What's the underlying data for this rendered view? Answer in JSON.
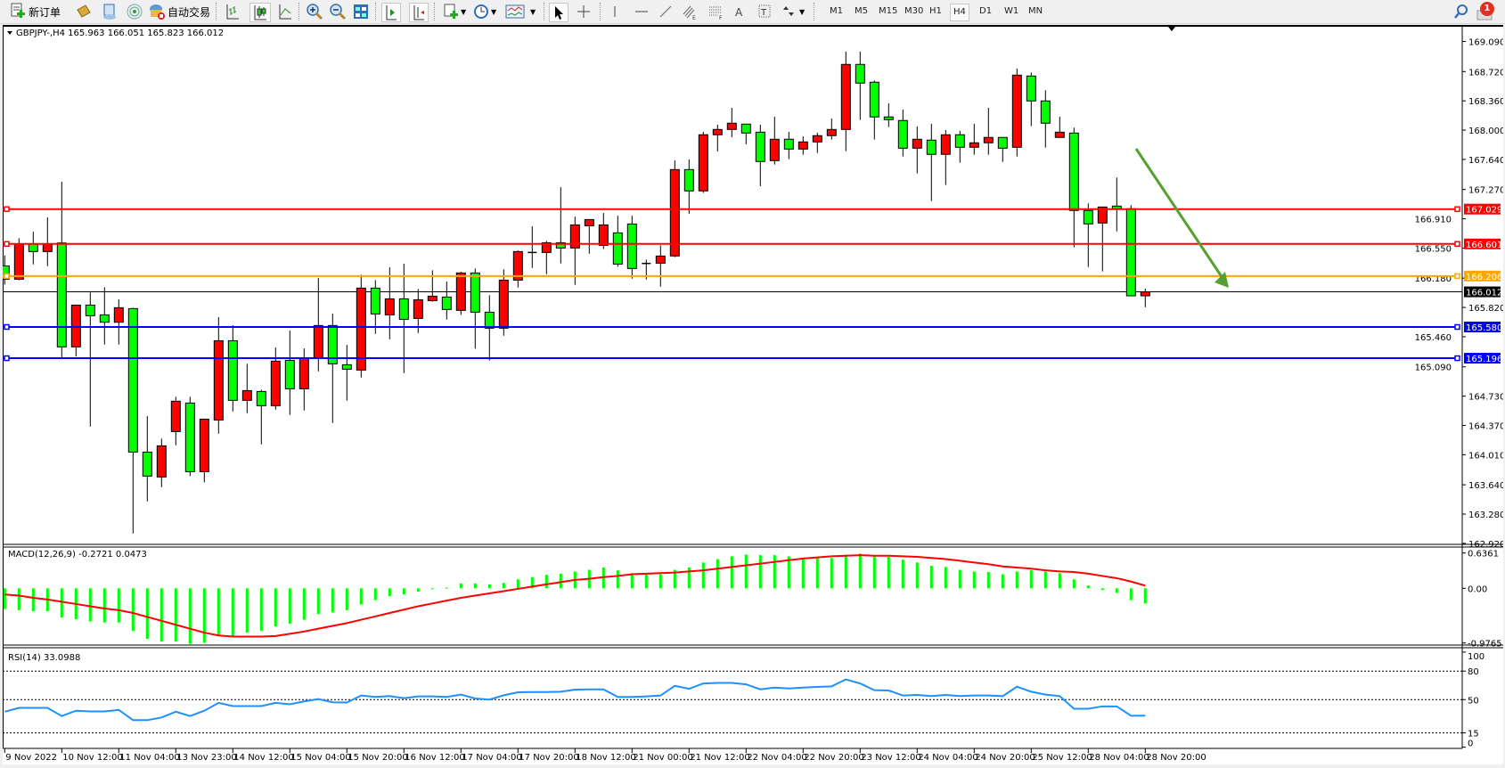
{
  "toolbar": {
    "new_order_label": "新订单",
    "autotrading_label": "自动交易",
    "timeframes": [
      "M1",
      "M5",
      "M15",
      "M30",
      "H1",
      "H4",
      "D1",
      "W1",
      "MN"
    ],
    "active_timeframe": "H4",
    "notification_count": "1",
    "icons": [
      "new-order-icon",
      "metaeditor-icon",
      "market-watch-icon",
      "signals-icon",
      "autotrading-icon",
      "bar-chart-icon",
      "candlestick-icon",
      "line-chart-icon",
      "zoom-in-icon",
      "zoom-out-icon",
      "tile-windows-icon",
      "auto-scroll-icon",
      "chart-shift-icon",
      "new-chart-icon",
      "periods-icon",
      "indicators-icon",
      "cursor-icon",
      "crosshair-icon",
      "vertical-line-icon",
      "horizontal-line-icon",
      "trendline-icon",
      "fibo-channel-icon",
      "fibo-retracement-icon",
      "text-icon",
      "text-label-icon",
      "arrows-icon",
      "search-icon",
      "notification-icon"
    ]
  },
  "chart": {
    "header": "GBPJPY-,H4  165.963 166.051 165.823 166.012",
    "colors": {
      "up": "#ff0000",
      "down": "#00ff00",
      "wick": "#000000",
      "macd_hist": "#00ff00",
      "macd_signal": "#ff0000",
      "rsi": "#1e90ff",
      "arrow": "#55a030"
    },
    "price_ticks": [
      "169.090",
      "168.720",
      "168.360",
      "168.000",
      "167.640",
      "167.270",
      "166.910",
      "166.550",
      "166.180",
      "165.820",
      "165.460",
      "165.090",
      "164.730",
      "164.370",
      "164.010",
      "163.640",
      "163.280",
      "162.920"
    ],
    "current_price": "166.012",
    "levels": [
      {
        "price": "167.029",
        "color": "#ff0000"
      },
      {
        "price": "166.601",
        "color": "#ff0000"
      },
      {
        "price": "166.206",
        "color": "#ffa500"
      },
      {
        "price": "165.580",
        "color": "#0000ff"
      },
      {
        "price": "165.196",
        "color": "#0000ff"
      }
    ],
    "time_labels": [
      "9 Nov 2022",
      "10 Nov 12:00",
      "11 Nov 04:00",
      "13 Nov 23:00",
      "14 Nov 12:00",
      "15 Nov 04:00",
      "15 Nov 20:00",
      "16 Nov 12:00",
      "17 Nov 04:00",
      "17 Nov 20:00",
      "18 Nov 12:00",
      "21 Nov 00:00",
      "21 Nov 12:00",
      "22 Nov 04:00",
      "22 Nov 20:00",
      "23 Nov 12:00",
      "24 Nov 04:00",
      "24 Nov 20:00",
      "25 Nov 12:00",
      "28 Nov 04:00",
      "28 Nov 20:00"
    ],
    "candles_ohlc": [
      [
        166.331,
        166.459,
        166.101,
        166.167
      ],
      [
        166.167,
        166.671,
        166.153,
        166.598
      ],
      [
        166.598,
        166.751,
        166.35,
        166.507
      ],
      [
        166.507,
        166.927,
        166.328,
        166.598
      ],
      [
        166.613,
        167.365,
        165.203,
        165.335
      ],
      [
        165.335,
        165.849,
        165.218,
        165.849
      ],
      [
        165.849,
        166.003,
        164.356,
        165.718
      ],
      [
        165.729,
        166.068,
        165.364,
        165.638
      ],
      [
        165.638,
        165.919,
        165.364,
        165.817
      ],
      [
        165.806,
        165.817,
        163.042,
        164.042
      ],
      [
        164.042,
        164.484,
        163.436,
        163.747
      ],
      [
        163.736,
        164.207,
        163.611,
        164.119
      ],
      [
        164.294,
        164.721,
        164.126,
        164.667
      ],
      [
        164.645,
        164.721,
        163.747,
        163.801
      ],
      [
        163.801,
        164.447,
        163.67,
        164.447
      ],
      [
        164.436,
        165.7,
        164.268,
        165.411
      ],
      [
        165.411,
        165.601,
        164.542,
        164.678
      ],
      [
        164.678,
        165.127,
        164.521,
        164.798
      ],
      [
        164.787,
        164.809,
        164.137,
        164.612
      ],
      [
        164.612,
        165.327,
        164.564,
        165.16
      ],
      [
        165.17,
        165.536,
        164.499,
        164.82
      ],
      [
        164.82,
        165.316,
        164.553,
        165.192
      ],
      [
        165.203,
        166.182,
        165.035,
        165.598
      ],
      [
        165.598,
        165.744,
        164.4,
        165.127
      ],
      [
        165.116,
        165.36,
        164.674,
        165.061
      ],
      [
        165.05,
        166.222,
        164.959,
        166.058
      ],
      [
        166.058,
        166.156,
        165.495,
        165.74
      ],
      [
        165.729,
        166.313,
        165.43,
        165.926
      ],
      [
        165.926,
        166.357,
        165.013,
        165.674
      ],
      [
        165.685,
        166.047,
        165.506,
        165.915
      ],
      [
        165.904,
        166.277,
        165.89,
        165.959
      ],
      [
        165.948,
        166.138,
        165.671,
        165.795
      ],
      [
        165.784,
        166.258,
        165.729,
        166.244
      ],
      [
        166.244,
        166.299,
        165.313,
        165.762
      ],
      [
        165.762,
        165.97,
        165.167,
        165.565
      ],
      [
        165.565,
        166.288,
        165.473,
        166.156
      ],
      [
        166.156,
        166.521,
        166.065,
        166.507
      ],
      [
        166.496,
        166.817,
        166.306,
        166.496
      ],
      [
        166.496,
        166.638,
        166.229,
        166.616
      ],
      [
        166.616,
        167.299,
        166.361,
        166.551
      ],
      [
        166.551,
        166.937,
        166.098,
        166.835
      ],
      [
        166.824,
        166.901,
        166.481,
        166.901
      ],
      [
        166.583,
        166.981,
        166.539,
        166.835
      ],
      [
        166.737,
        166.948,
        166.32,
        166.353
      ],
      [
        166.846,
        166.948,
        166.174,
        166.299
      ],
      [
        166.361,
        166.408,
        166.163,
        166.361
      ],
      [
        166.364,
        166.583,
        166.076,
        166.452
      ],
      [
        166.453,
        167.629,
        166.438,
        167.515
      ],
      [
        167.515,
        167.64,
        166.971,
        167.253
      ],
      [
        167.253,
        167.979,
        167.227,
        167.943
      ],
      [
        167.943,
        168.067,
        167.738,
        168.008
      ],
      [
        168.008,
        168.275,
        167.913,
        168.085
      ],
      [
        168.074,
        168.074,
        167.826,
        167.964
      ],
      [
        167.975,
        168.067,
        167.311,
        167.614
      ],
      [
        167.625,
        168.165,
        167.577,
        167.888
      ],
      [
        167.888,
        167.979,
        167.643,
        167.767
      ],
      [
        167.767,
        167.924,
        167.698,
        167.855
      ],
      [
        167.855,
        167.968,
        167.72,
        167.932
      ],
      [
        167.932,
        168.143,
        167.884,
        168.008
      ],
      [
        168.008,
        168.965,
        167.742,
        168.808
      ],
      [
        168.808,
        168.965,
        168.125,
        168.578
      ],
      [
        168.589,
        168.611,
        167.884,
        168.162
      ],
      [
        168.162,
        168.33,
        168.038,
        168.129
      ],
      [
        168.118,
        168.253,
        167.676,
        167.778
      ],
      [
        167.778,
        168.045,
        167.468,
        167.888
      ],
      [
        167.877,
        168.078,
        167.128,
        167.702
      ],
      [
        167.702,
        168.001,
        167.326,
        167.943
      ],
      [
        167.943,
        167.99,
        167.599,
        167.789
      ],
      [
        167.789,
        168.078,
        167.698,
        167.844
      ],
      [
        167.844,
        168.275,
        167.698,
        167.91
      ],
      [
        167.91,
        167.91,
        167.61,
        167.778
      ],
      [
        167.789,
        168.757,
        167.676,
        168.676
      ],
      [
        168.665,
        168.709,
        168.049,
        168.359
      ],
      [
        168.359,
        168.49,
        167.786,
        168.085
      ],
      [
        167.91,
        168.165,
        167.91,
        167.975
      ],
      [
        167.964,
        168.03,
        166.559,
        167.012
      ],
      [
        167.012,
        167.099,
        166.318,
        166.847
      ],
      [
        166.858,
        167.055,
        166.263,
        167.055
      ],
      [
        167.066,
        167.417,
        166.756,
        167.034
      ],
      [
        167.034,
        167.077,
        165.963,
        165.963
      ],
      [
        165.963,
        166.051,
        165.823,
        166.012
      ]
    ]
  },
  "macd": {
    "header": "MACD(12,26,9) -0.2721 0.0473",
    "ticks": [
      "0.6361",
      "0.00",
      "-0.9765"
    ],
    "histogram": [
      -0.37,
      -0.39,
      -0.41,
      -0.41,
      -0.52,
      -0.55,
      -0.59,
      -0.61,
      -0.61,
      -0.76,
      -0.9,
      -0.95,
      -0.95,
      -0.99,
      -0.97,
      -0.85,
      -0.85,
      -0.79,
      -0.76,
      -0.68,
      -0.63,
      -0.56,
      -0.46,
      -0.43,
      -0.39,
      -0.29,
      -0.21,
      -0.14,
      -0.11,
      -0.06,
      -0.01,
      0.01,
      0.085,
      0.085,
      0.07,
      0.095,
      0.16,
      0.2,
      0.24,
      0.26,
      0.3,
      0.33,
      0.37,
      0.32,
      0.27,
      0.27,
      0.25,
      0.33,
      0.37,
      0.46,
      0.52,
      0.57,
      0.6,
      0.59,
      0.59,
      0.57,
      0.54,
      0.54,
      0.54,
      0.6,
      0.62,
      0.57,
      0.56,
      0.51,
      0.46,
      0.4,
      0.38,
      0.33,
      0.3,
      0.29,
      0.25,
      0.3,
      0.32,
      0.3,
      0.27,
      0.16,
      0.05,
      -0.03,
      -0.08,
      -0.21,
      -0.2721
    ],
    "signal": [
      -0.11,
      -0.13,
      -0.17,
      -0.2,
      -0.24,
      -0.28,
      -0.32,
      -0.36,
      -0.39,
      -0.44,
      -0.51,
      -0.58,
      -0.65,
      -0.72,
      -0.79,
      -0.84,
      -0.86,
      -0.86,
      -0.86,
      -0.85,
      -0.81,
      -0.77,
      -0.72,
      -0.67,
      -0.62,
      -0.56,
      -0.5,
      -0.44,
      -0.38,
      -0.32,
      -0.27,
      -0.22,
      -0.17,
      -0.13,
      -0.09,
      -0.05,
      -0.01,
      0.03,
      0.07,
      0.11,
      0.15,
      0.17,
      0.2,
      0.22,
      0.25,
      0.26,
      0.27,
      0.28,
      0.3,
      0.32,
      0.35,
      0.38,
      0.41,
      0.44,
      0.47,
      0.5,
      0.53,
      0.55,
      0.57,
      0.58,
      0.59,
      0.58,
      0.58,
      0.57,
      0.56,
      0.54,
      0.52,
      0.49,
      0.46,
      0.43,
      0.39,
      0.37,
      0.35,
      0.32,
      0.3,
      0.29,
      0.26,
      0.22,
      0.18,
      0.12,
      0.0473
    ]
  },
  "rsi": {
    "header": "RSI(14) 33.0988",
    "ticks": [
      "100",
      "80",
      "50",
      "15",
      "0"
    ],
    "levels": [
      80,
      50,
      15
    ],
    "values": [
      37.3,
      41.3,
      41.3,
      41.3,
      32.7,
      38.3,
      37.6,
      37.6,
      39.2,
      28.4,
      28.4,
      31.2,
      37.3,
      32.7,
      38.3,
      46.6,
      43.2,
      43.2,
      43.2,
      46.6,
      45.1,
      48.1,
      50.6,
      47.2,
      46.9,
      54.3,
      52.8,
      53.7,
      51.5,
      53.4,
      53.4,
      52.8,
      55.3,
      51.2,
      50.0,
      54.6,
      57.7,
      58.0,
      58.0,
      58.3,
      60.5,
      60.8,
      60.8,
      52.8,
      52.8,
      53.4,
      54.3,
      64.5,
      61.4,
      67.0,
      67.6,
      67.6,
      66.1,
      60.8,
      62.7,
      61.7,
      62.7,
      63.3,
      63.9,
      71.3,
      67.0,
      59.9,
      59.6,
      54.3,
      54.9,
      53.7,
      54.9,
      53.7,
      54.3,
      54.3,
      53.7,
      63.6,
      58.3,
      55.3,
      53.7,
      40.4,
      40.4,
      42.9,
      42.9,
      33.0,
      33.0988
    ]
  }
}
